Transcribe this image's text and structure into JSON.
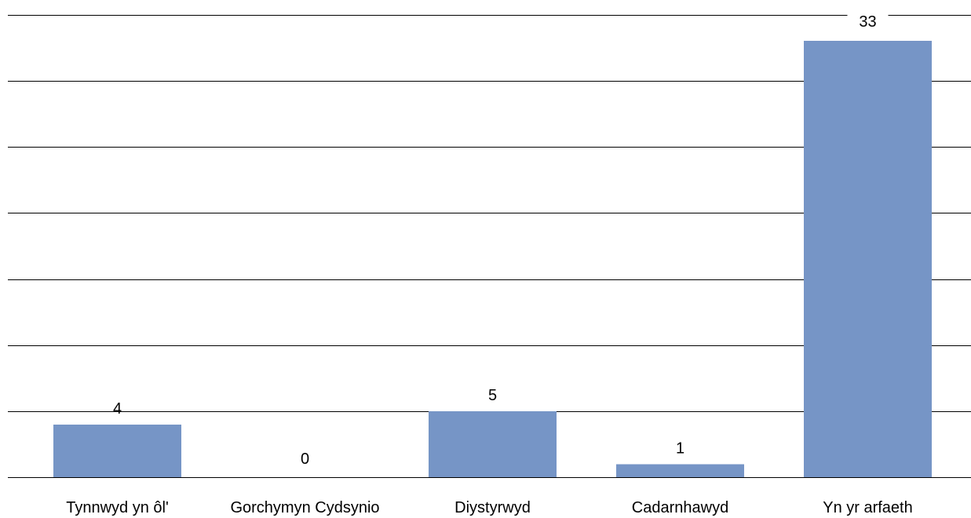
{
  "chart_data": {
    "type": "bar",
    "categories": [
      "Tynnwyd yn ôl'",
      "Gorchymyn Cydsynio",
      "Diystyrwyd",
      "Cadarnhawyd",
      "Yn yr arfaeth"
    ],
    "values": [
      4,
      0,
      5,
      1,
      33
    ],
    "data_labels": [
      "4",
      "0",
      "5",
      "1",
      "33"
    ],
    "title": "",
    "xlabel": "",
    "ylabel": "",
    "ylim": [
      0,
      35
    ],
    "grid": true,
    "grid_step": 5,
    "legend": "none",
    "bar_color": "#7695c6",
    "grid_color": "#000000",
    "text_color": "#000000"
  }
}
